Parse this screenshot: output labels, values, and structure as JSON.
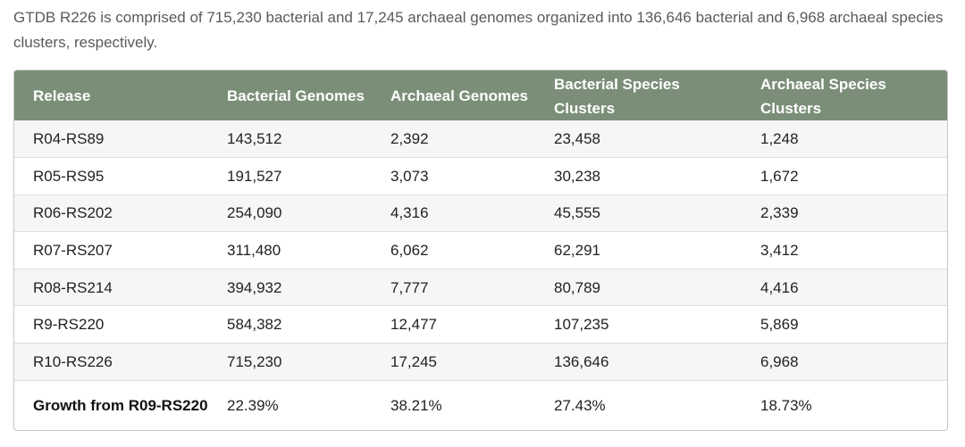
{
  "intro_text": "GTDB R226 is comprised of 715,230 bacterial and 17,245 archaeal genomes organized into 136,646 bacterial and 6,968 archaeal species clusters, respectively.",
  "table": {
    "headers": {
      "release": "Release",
      "bacterial_genomes": "Bacterial Genomes",
      "archaeal_genomes": "Archaeal Genomes",
      "bacterial_species_clusters": "Bacterial Species Clusters",
      "archaeal_species_clusters": "Archaeal Species Clusters"
    },
    "rows": [
      {
        "release": "R04-RS89",
        "bacterial_genomes": "143,512",
        "archaeal_genomes": "2,392",
        "bacterial_species_clusters": "23,458",
        "archaeal_species_clusters": "1,248"
      },
      {
        "release": "R05-RS95",
        "bacterial_genomes": "191,527",
        "archaeal_genomes": "3,073",
        "bacterial_species_clusters": "30,238",
        "archaeal_species_clusters": "1,672"
      },
      {
        "release": "R06-RS202",
        "bacterial_genomes": "254,090",
        "archaeal_genomes": "4,316",
        "bacterial_species_clusters": "45,555",
        "archaeal_species_clusters": "2,339"
      },
      {
        "release": "R07-RS207",
        "bacterial_genomes": "311,480",
        "archaeal_genomes": "6,062",
        "bacterial_species_clusters": "62,291",
        "archaeal_species_clusters": "3,412"
      },
      {
        "release": "R08-RS214",
        "bacterial_genomes": "394,932",
        "archaeal_genomes": "7,777",
        "bacterial_species_clusters": "80,789",
        "archaeal_species_clusters": "4,416"
      },
      {
        "release": "R9-RS220",
        "bacterial_genomes": "584,382",
        "archaeal_genomes": "12,477",
        "bacterial_species_clusters": "107,235",
        "archaeal_species_clusters": "5,869"
      },
      {
        "release": "R10-RS226",
        "bacterial_genomes": "715,230",
        "archaeal_genomes": "17,245",
        "bacterial_species_clusters": "136,646",
        "archaeal_species_clusters": "6,968"
      }
    ],
    "growth_row": {
      "release": "Growth from R09-RS220",
      "bacterial_genomes": "22.39%",
      "archaeal_genomes": "38.21%",
      "bacterial_species_clusters": "27.43%",
      "archaeal_species_clusters": "18.73%"
    }
  },
  "colors": {
    "header_background": "#7b8f78",
    "header_text": "#ffffff",
    "zebra_row": "#f6f6f6",
    "intro_text": "#5a5a5a"
  }
}
